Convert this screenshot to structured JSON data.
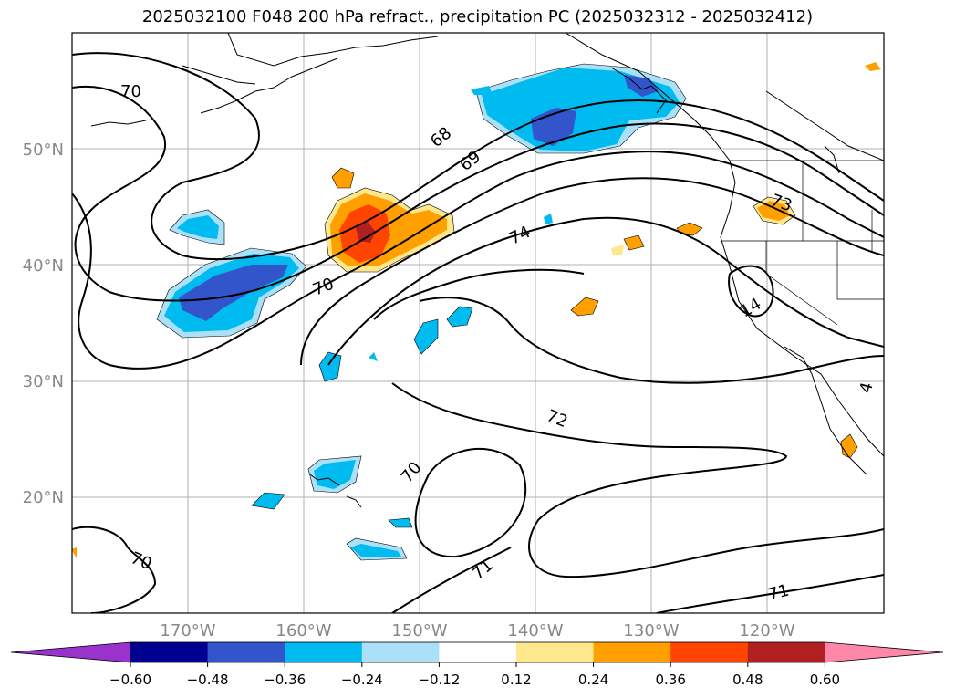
{
  "title": "2025032100 F048 200 hPa refract., precipitation PC (2025032312 - 2025032412)",
  "map": {
    "lat_labels": [
      "50°N",
      "40°N",
      "30°N",
      "20°N"
    ],
    "lon_labels": [
      "170°W",
      "160°W",
      "150°W",
      "140°W",
      "130°W",
      "120°W"
    ],
    "lon_range": [
      -180,
      -110
    ],
    "lat_range": [
      10,
      60
    ],
    "contour_labels": [
      "70",
      "68",
      "69",
      "74",
      "70",
      "72",
      "70",
      "71",
      "70",
      "71",
      "73",
      "14",
      "4"
    ]
  },
  "colorbar": {
    "ticks": [
      "−0.60",
      "−0.48",
      "−0.36",
      "−0.24",
      "−0.12",
      "0.12",
      "0.24",
      "0.36",
      "0.48",
      "0.60"
    ],
    "colors": [
      "#9933cc",
      "#000090",
      "#3355cc",
      "#00bbf0",
      "#aae0f8",
      "#ffffff",
      "#ffe88c",
      "#ff9f00",
      "#ff4400",
      "#b02020",
      "#ff88aa"
    ]
  }
}
